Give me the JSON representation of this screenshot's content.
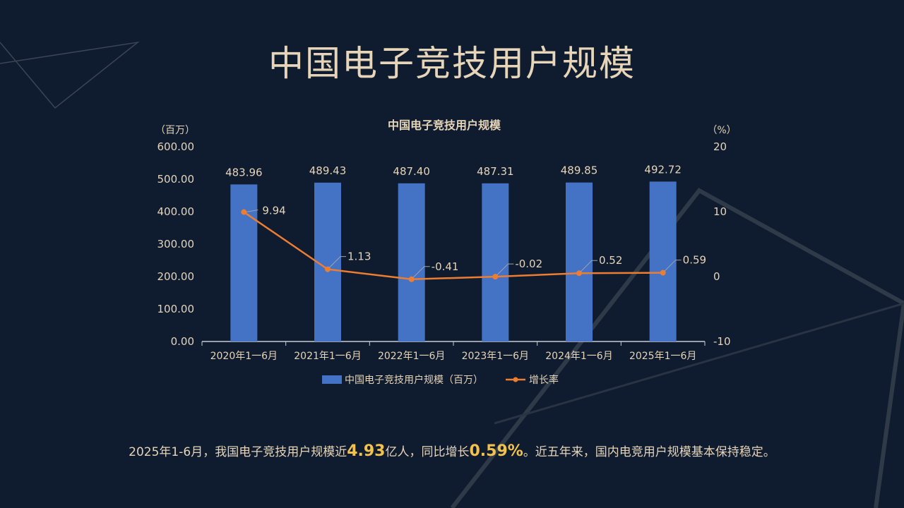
{
  "page": {
    "title": "中国电子竞技用户规模"
  },
  "summary": {
    "part1": "2025年1-6月，我国电子竞技用户规模近",
    "highlight1": "4.93",
    "part2": "亿人，同比增长",
    "highlight2": "0.59%",
    "part3": "。近五年来，国内电竞用户规模基本保持稳定。"
  },
  "colors": {
    "background": "#0f1b2e",
    "bar": "#4472c4",
    "line": "#ed7d31",
    "text": "#e6d5b8",
    "highlight": "#f2c14e"
  },
  "chart_data": {
    "type": "bar",
    "title": "中国电子竞技用户规模",
    "categories": [
      "2020年1一6月",
      "2021年1一6月",
      "2022年1一6月",
      "2023年1一6月",
      "2024年1一6月",
      "2025年1一6月"
    ],
    "series": [
      {
        "name": "中国电子竞技用户规模（百万）",
        "type": "bar",
        "axis": "left",
        "values": [
          483.96,
          489.43,
          487.4,
          487.31,
          489.85,
          492.72
        ],
        "labels": [
          "483.96",
          "489.43",
          "487.40",
          "487.31",
          "489.85",
          "492.72"
        ]
      },
      {
        "name": "增长率",
        "type": "line",
        "axis": "right",
        "values": [
          9.94,
          1.13,
          -0.41,
          -0.02,
          0.52,
          0.59
        ],
        "labels": [
          "9.94",
          "1.13",
          "-0.41",
          "-0.02",
          "0.52",
          "0.59"
        ]
      }
    ],
    "y_left": {
      "unit": "（百万）",
      "ylim": [
        0,
        600
      ],
      "ticks": [
        "600.00",
        "500.00",
        "400.00",
        "300.00",
        "200.00",
        "100.00",
        "0.00"
      ]
    },
    "y_right": {
      "unit": "（%）",
      "ylim": [
        -10,
        20
      ],
      "ticks": [
        "20",
        "10",
        "0",
        "-10"
      ]
    },
    "legend_position": "bottom",
    "grid": false
  }
}
